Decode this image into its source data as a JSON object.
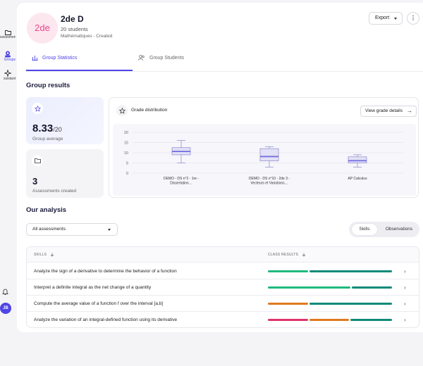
{
  "sidebar": {
    "items": [
      {
        "label": "ssessments",
        "icon": "folder-icon"
      },
      {
        "label": "Groups",
        "icon": "groups-icon"
      },
      {
        "label": "ssistant",
        "icon": "sparkle-icon"
      }
    ],
    "bell_icon": "bell-icon",
    "user_initials": "JB"
  },
  "header": {
    "avatar_text": "2de",
    "name": "2de D",
    "students": "20 students",
    "meta": "Mathématiques - Created",
    "export_label": "Export",
    "more_label": "⋮"
  },
  "tabs": [
    {
      "label": "Group Statistics",
      "active": true
    },
    {
      "label": "Group Students",
      "active": false
    }
  ],
  "group_results": {
    "title": "Group results",
    "average": {
      "value": "8.33",
      "denominator": "/20",
      "label": "Group average"
    },
    "assessments": {
      "value": "3",
      "label": "Assessments created"
    }
  },
  "grade_distribution": {
    "title": "Grade distribution",
    "view_button": "View grade details",
    "arrow": "→"
  },
  "chart_data": {
    "type": "box",
    "title": "Grade distribution",
    "categories": [
      "DEMO - DS n°2 - 1re - Dissertation…",
      "DEMO - DS n°10 - 2de 3 - Vecteurs et Variations…",
      "AP Calculus"
    ],
    "category_lines": [
      [
        "DEMO - DS n°2 - 1re -",
        "Dissertation…"
      ],
      [
        "DEMO - DS n°10 - 2de 3 -",
        "Vecteurs et Variations…"
      ],
      [
        "AP Calculus"
      ]
    ],
    "boxes": [
      {
        "min": 5,
        "q1": 9,
        "median": 10.5,
        "mean": 11,
        "q3": 12.5,
        "max": 16
      },
      {
        "min": 3,
        "q1": 6,
        "median": 8,
        "mean": 8.5,
        "q3": 12,
        "max": 13
      },
      {
        "min": 3,
        "q1": 5,
        "median": 6,
        "mean": 6.5,
        "q3": 8,
        "max": 9
      }
    ],
    "ylim": [
      0,
      20
    ],
    "yticks": [
      0,
      5,
      10,
      15,
      20
    ],
    "grid": true
  },
  "analysis": {
    "title": "Our analysis",
    "filter_value": "All assessments",
    "toggle": {
      "skills": "Skills",
      "observations": "Observations",
      "active": "skills"
    },
    "columns": {
      "skills": "SKILLS",
      "results": "CLASS RESULTS"
    },
    "rows": [
      {
        "skill": "Analyze the sign of a derivative to determine the behavior of a function",
        "segments": [
          {
            "fraction": 0.33,
            "color": "#1fb97c"
          },
          {
            "fraction": 0.67,
            "color": "#0f8a7a"
          }
        ]
      },
      {
        "skill": "Interpret a definite integral as the net change of a quantity",
        "segments": [
          {
            "fraction": 0.67,
            "color": "#1fb97c"
          },
          {
            "fraction": 0.33,
            "color": "#0f8a7a"
          }
        ]
      },
      {
        "skill": "Compute the average value of a function f over the interval [a,b]",
        "segments": [
          {
            "fraction": 0.33,
            "color": "#e07a1f"
          },
          {
            "fraction": 0.67,
            "color": "#0f8a7a"
          }
        ]
      },
      {
        "skill": "Analyze the variation of an integral-defined function using its derivative",
        "segments": [
          {
            "fraction": 0.33,
            "color": "#e0336a"
          },
          {
            "fraction": 0.33,
            "color": "#e07a1f"
          },
          {
            "fraction": 0.34,
            "color": "#0f8a7a"
          }
        ]
      }
    ],
    "sort_icon": "arrow-down-icon",
    "row_chevron": "›"
  }
}
